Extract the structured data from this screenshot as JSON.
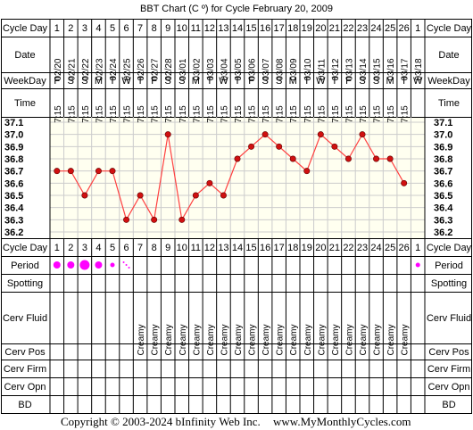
{
  "title": "BBT Chart (C º) for Cycle February 20, 2009",
  "row_labels": {
    "cycle_day": "Cycle Day",
    "date": "Date",
    "weekday": "WeekDay",
    "time": "Time",
    "period": "Period",
    "spotting": "Spotting",
    "cerv_fluid": "Cerv Fluid",
    "cerv_pos": "Cerv Pos",
    "cerv_firm": "Cerv Firm",
    "cerv_opn": "Cerv Opn",
    "bd": "BD"
  },
  "cycle_days": [
    "1",
    "2",
    "3",
    "4",
    "5",
    "6",
    "7",
    "8",
    "9",
    "10",
    "11",
    "12",
    "13",
    "14",
    "15",
    "16",
    "17",
    "18",
    "19",
    "20",
    "21",
    "22",
    "23",
    "24",
    "25",
    "26",
    "1"
  ],
  "dates": [
    "02/20",
    "02/21",
    "02/22",
    "02/23",
    "02/24",
    "02/25",
    "02/26",
    "02/27",
    "02/28",
    "03/01",
    "03/02",
    "03/03",
    "03/04",
    "03/05",
    "03/06",
    "03/07",
    "03/08",
    "03/09",
    "03/10",
    "03/11",
    "03/12",
    "03/13",
    "03/14",
    "03/15",
    "03/16",
    "03/17",
    "03/18"
  ],
  "weekdays": [
    "F",
    "S",
    "S",
    "M",
    "T",
    "W",
    "T",
    "F",
    "S",
    "S",
    "M",
    "T",
    "W",
    "T",
    "F",
    "S",
    "S",
    "M",
    "T",
    "W",
    "T",
    "F",
    "S",
    "S",
    "M",
    "T",
    "W"
  ],
  "times": [
    "7:15",
    "7:15",
    "7:15",
    "7:15",
    "7:15",
    "7:15",
    "7:15",
    "7:15",
    "7:15",
    "7:15",
    "7:15",
    "7:15",
    "7:15",
    "7:15",
    "7:15",
    "7:15",
    "7:15",
    "7:15",
    "7:15",
    "7:15",
    "7:15",
    "7:15",
    "7:15",
    "7:15",
    "7:15",
    "7:15",
    ""
  ],
  "period": [
    3,
    3,
    4,
    3,
    2,
    1,
    0,
    0,
    0,
    0,
    0,
    0,
    0,
    0,
    0,
    0,
    0,
    0,
    0,
    0,
    0,
    0,
    0,
    0,
    0,
    0,
    2
  ],
  "period_color": "#ff00ff",
  "cerv_fluid": [
    "",
    "",
    "",
    "",
    "",
    "",
    "Creamy",
    "Creamy",
    "Creamy",
    "Creamy",
    "Creamy",
    "Creamy",
    "Creamy",
    "Creamy",
    "Creamy",
    "Creamy",
    "Creamy",
    "Creamy",
    "Creamy",
    "Creamy",
    "Creamy",
    "Creamy",
    "Creamy",
    "Creamy",
    "Creamy",
    "Creamy",
    ""
  ],
  "chart_data": {
    "type": "line",
    "x": [
      "1",
      "2",
      "3",
      "4",
      "5",
      "6",
      "7",
      "8",
      "9",
      "10",
      "11",
      "12",
      "13",
      "14",
      "15",
      "16",
      "17",
      "18",
      "19",
      "20",
      "21",
      "22",
      "23",
      "24",
      "25",
      "26"
    ],
    "y": [
      36.7,
      36.7,
      36.5,
      36.7,
      36.7,
      36.3,
      36.5,
      36.3,
      37.0,
      36.3,
      36.5,
      36.6,
      36.5,
      36.8,
      36.9,
      37.0,
      36.9,
      36.8,
      36.7,
      37.0,
      36.9,
      36.8,
      37.0,
      36.8,
      36.8,
      36.6
    ],
    "ylim": [
      36.2,
      37.1
    ],
    "yticks": [
      "37.1",
      "37.0",
      "36.9",
      "36.8",
      "36.7",
      "36.6",
      "36.5",
      "36.4",
      "36.3",
      "36.2"
    ],
    "line_color": "#ff4040",
    "marker_color": "#d01010",
    "plot_bg": "#fffff0",
    "grid": true
  },
  "footer": {
    "copyright": "Copyright © 2003-2024 bInfinity Web Inc.",
    "site": "www.MyMonthlyCycles.com"
  }
}
